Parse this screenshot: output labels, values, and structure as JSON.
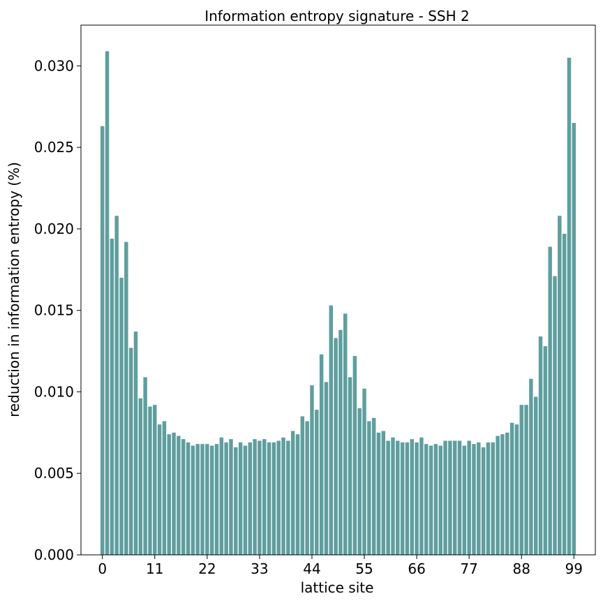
{
  "chart_data": {
    "type": "bar",
    "title": "Information entropy signature - SSH 2",
    "xlabel": "lattice site",
    "ylabel": "reduction in information entropy (%)",
    "bar_color": "#5f9e9e",
    "xlim": [
      -4.5,
      103.5
    ],
    "ylim": [
      0,
      0.0325
    ],
    "x_ticks": [
      0,
      11,
      22,
      33,
      44,
      55,
      66,
      77,
      88,
      99
    ],
    "y_ticks": [
      0.0,
      0.005,
      0.01,
      0.015,
      0.02,
      0.025,
      0.03
    ],
    "y_tick_labels": [
      "0.000",
      "0.005",
      "0.010",
      "0.015",
      "0.020",
      "0.025",
      "0.030"
    ],
    "x": [
      0,
      1,
      2,
      3,
      4,
      5,
      6,
      7,
      8,
      9,
      10,
      11,
      12,
      13,
      14,
      15,
      16,
      17,
      18,
      19,
      20,
      21,
      22,
      23,
      24,
      25,
      26,
      27,
      28,
      29,
      30,
      31,
      32,
      33,
      34,
      35,
      36,
      37,
      38,
      39,
      40,
      41,
      42,
      43,
      44,
      45,
      46,
      47,
      48,
      49,
      50,
      51,
      52,
      53,
      54,
      55,
      56,
      57,
      58,
      59,
      60,
      61,
      62,
      63,
      64,
      65,
      66,
      67,
      68,
      69,
      70,
      71,
      72,
      73,
      74,
      75,
      76,
      77,
      78,
      79,
      80,
      81,
      82,
      83,
      84,
      85,
      86,
      87,
      88,
      89,
      90,
      91,
      92,
      93,
      94,
      95,
      96,
      97,
      98,
      99
    ],
    "values": [
      0.0263,
      0.0309,
      0.0194,
      0.0208,
      0.017,
      0.0192,
      0.0127,
      0.0137,
      0.0096,
      0.0109,
      0.0091,
      0.0092,
      0.008,
      0.0082,
      0.0074,
      0.0075,
      0.0073,
      0.0071,
      0.0069,
      0.0067,
      0.0068,
      0.0068,
      0.0068,
      0.0067,
      0.0068,
      0.0072,
      0.0069,
      0.0071,
      0.0066,
      0.0069,
      0.0067,
      0.0069,
      0.0071,
      0.007,
      0.0071,
      0.0069,
      0.0069,
      0.007,
      0.0072,
      0.007,
      0.0076,
      0.0074,
      0.0085,
      0.0082,
      0.0104,
      0.0089,
      0.0123,
      0.0106,
      0.0153,
      0.0133,
      0.0138,
      0.0148,
      0.0109,
      0.0122,
      0.009,
      0.0102,
      0.0082,
      0.0084,
      0.0075,
      0.0076,
      0.007,
      0.0072,
      0.007,
      0.0069,
      0.0069,
      0.0071,
      0.0069,
      0.0072,
      0.0068,
      0.0067,
      0.0068,
      0.0067,
      0.007,
      0.007,
      0.007,
      0.007,
      0.0067,
      0.007,
      0.0068,
      0.0069,
      0.0066,
      0.0069,
      0.0069,
      0.0073,
      0.0074,
      0.0075,
      0.0081,
      0.008,
      0.0092,
      0.0092,
      0.0108,
      0.0097,
      0.0134,
      0.0128,
      0.0189,
      0.0171,
      0.0208,
      0.0197,
      0.0305,
      0.0265
    ]
  }
}
